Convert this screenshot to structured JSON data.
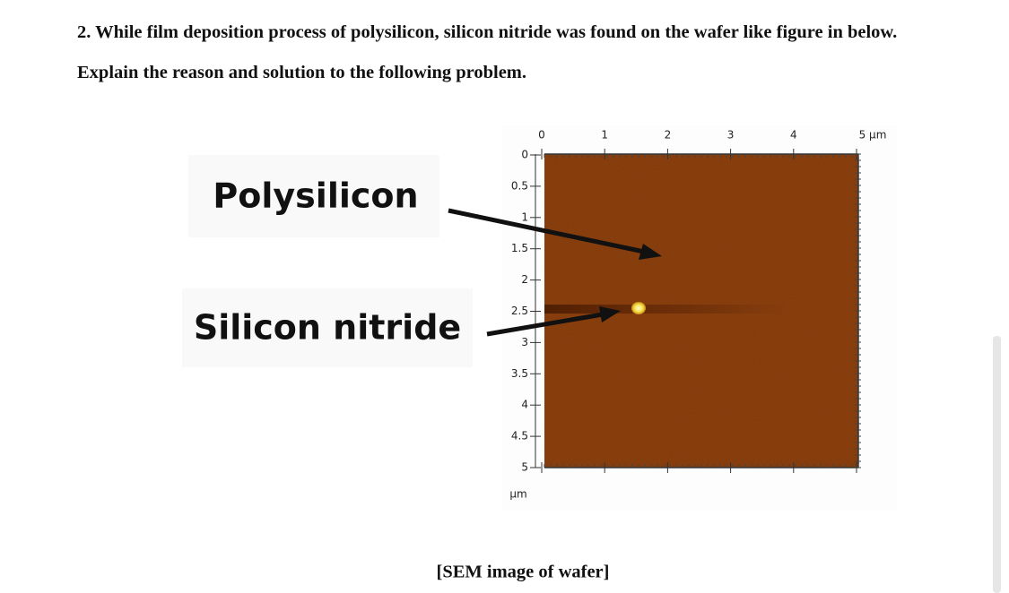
{
  "question": {
    "text": "2. While film deposition process of polysilicon, silicon nitride was found on the wafer like figure in below. Explain the reason and solution to the following problem."
  },
  "figure": {
    "labels": [
      "Polysilicon",
      "Silicon nitride"
    ],
    "x_ticks": [
      "0",
      "1",
      "2",
      "3",
      "4",
      "5 µm"
    ],
    "y_ticks": [
      "0",
      "0.5",
      "1",
      "1.5",
      "2",
      "2.5",
      "3",
      "3.5",
      "4",
      "4.5",
      "5"
    ],
    "y_unit": "µm",
    "caption": "[SEM image of wafer]"
  }
}
